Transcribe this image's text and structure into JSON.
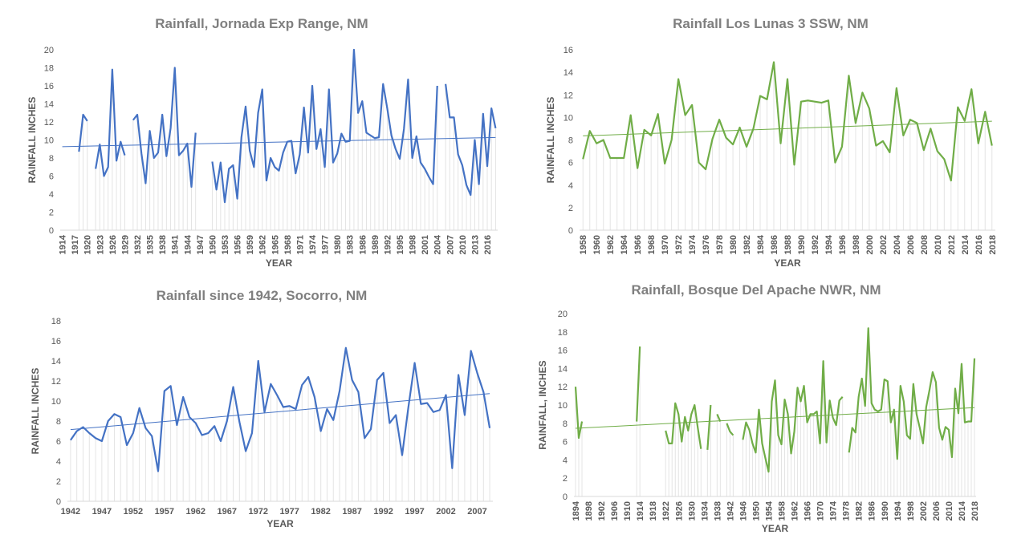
{
  "chart_data": [
    {
      "type": "line",
      "title": "Rainfall, Jornada Exp Range, NM",
      "y_label": "RAINFALL INCHES",
      "x_label": "YEAR",
      "color": "#4472c4",
      "trendline": true,
      "x": [
        1914,
        1915,
        1916,
        1917,
        1918,
        1919,
        1920,
        1921,
        1922,
        1923,
        1924,
        1925,
        1926,
        1927,
        1928,
        1929,
        1930,
        1931,
        1932,
        1933,
        1934,
        1935,
        1936,
        1937,
        1938,
        1939,
        1940,
        1941,
        1942,
        1943,
        1944,
        1945,
        1946,
        1947,
        1948,
        1949,
        1950,
        1951,
        1952,
        1953,
        1954,
        1955,
        1956,
        1957,
        1958,
        1959,
        1960,
        1961,
        1962,
        1963,
        1964,
        1965,
        1966,
        1967,
        1968,
        1969,
        1970,
        1971,
        1972,
        1973,
        1974,
        1975,
        1976,
        1977,
        1978,
        1979,
        1980,
        1981,
        1982,
        1983,
        1984,
        1985,
        1986,
        1987,
        1988,
        1989,
        1990,
        1991,
        1992,
        1993,
        1994,
        1995,
        1996,
        1997,
        1998,
        1999,
        2000,
        2001,
        2002,
        2003,
        2004,
        2005,
        2006,
        2007,
        2008,
        2009,
        2010,
        2011,
        2012,
        2013,
        2014,
        2015,
        2016,
        2017,
        2018
      ],
      "values": [
        null,
        null,
        null,
        null,
        8.7,
        12.8,
        12.1,
        null,
        6.8,
        9.5,
        6.0,
        7.0,
        17.8,
        7.7,
        9.8,
        8.3,
        null,
        12.2,
        12.8,
        8.5,
        5.2,
        11.0,
        8.0,
        8.6,
        12.8,
        8.2,
        11.3,
        18.0,
        8.3,
        8.8,
        9.6,
        4.8,
        10.8,
        null,
        null,
        null,
        7.6,
        4.5,
        7.5,
        3.1,
        6.8,
        7.2,
        3.5,
        10.3,
        13.7,
        8.8,
        7.0,
        13.0,
        15.6,
        5.5,
        8.0,
        7.0,
        6.6,
        8.6,
        9.8,
        9.9,
        6.3,
        8.4,
        13.6,
        8.6,
        16.0,
        9.0,
        11.2,
        7.0,
        15.6,
        7.5,
        8.5,
        10.7,
        9.8,
        9.9,
        20.0,
        13.0,
        14.3,
        10.8,
        10.5,
        10.2,
        10.3,
        16.2,
        13.5,
        10.5,
        9.0,
        7.9,
        11.2,
        16.7,
        8.0,
        10.4,
        7.5,
        6.8,
        5.9,
        5.1,
        16.0,
        null,
        16.2,
        12.5,
        12.5,
        8.4,
        7.2,
        5.0,
        3.9,
        10.0,
        5.1,
        12.9,
        7.1,
        13.5,
        11.3
      ],
      "xlim": [
        1913.5,
        2018.5
      ],
      "xticks": [
        1914,
        1917,
        1920,
        1923,
        1926,
        1929,
        1932,
        1935,
        1938,
        1941,
        1944,
        1947,
        1950,
        1953,
        1956,
        1959,
        1962,
        1965,
        1968,
        1971,
        1974,
        1977,
        1980,
        1983,
        1986,
        1989,
        1992,
        1995,
        1998,
        2001,
        2004,
        2007,
        2010,
        2013,
        2016
      ],
      "x_tick_rotate": true,
      "ylim": [
        0,
        20
      ],
      "yticks": [
        0,
        2,
        4,
        6,
        8,
        10,
        12,
        14,
        16,
        18,
        20
      ]
    },
    {
      "type": "line",
      "title": "Rainfall Los Lunas 3 SSW, NM",
      "y_label": "RAINFALL INCHES",
      "x_label": "YEAR",
      "color": "#70ad47",
      "trendline": true,
      "x": [
        1958,
        1959,
        1960,
        1961,
        1962,
        1963,
        1964,
        1965,
        1966,
        1967,
        1968,
        1969,
        1970,
        1971,
        1972,
        1973,
        1974,
        1975,
        1976,
        1977,
        1978,
        1979,
        1980,
        1981,
        1982,
        1983,
        1984,
        1985,
        1986,
        1987,
        1988,
        1989,
        1990,
        1991,
        1992,
        1993,
        1994,
        1995,
        1996,
        1997,
        1998,
        1999,
        2000,
        2001,
        2002,
        2003,
        2004,
        2005,
        2006,
        2007,
        2008,
        2009,
        2010,
        2011,
        2012,
        2013,
        2014,
        2015,
        2016,
        2017,
        2018
      ],
      "values": [
        6.3,
        8.8,
        7.7,
        8.0,
        6.4,
        6.4,
        6.4,
        10.2,
        5.5,
        8.9,
        8.4,
        10.3,
        5.9,
        8.0,
        13.4,
        10.2,
        11.1,
        6.0,
        5.4,
        8.1,
        9.8,
        8.2,
        7.6,
        9.1,
        7.4,
        9.0,
        11.9,
        11.6,
        14.9,
        7.7,
        13.4,
        5.8,
        11.4,
        11.5,
        11.4,
        11.3,
        11.5,
        6.0,
        7.4,
        13.7,
        9.5,
        12.2,
        10.8,
        7.5,
        7.9,
        6.9,
        12.6,
        8.4,
        9.8,
        9.5,
        7.1,
        9.0,
        7.0,
        6.3,
        4.4,
        10.9,
        9.7,
        12.5,
        7.7,
        10.5,
        7.5
      ],
      "xlim": [
        1957.5,
        2018.5
      ],
      "xticks": [
        1958,
        1960,
        1962,
        1964,
        1966,
        1968,
        1970,
        1972,
        1974,
        1976,
        1978,
        1980,
        1982,
        1984,
        1986,
        1988,
        1990,
        1992,
        1994,
        1996,
        1998,
        2000,
        2002,
        2004,
        2006,
        2008,
        2010,
        2012,
        2014,
        2016,
        2018
      ],
      "x_tick_rotate": true,
      "ylim": [
        0,
        16
      ],
      "yticks": [
        0,
        2,
        4,
        6,
        8,
        10,
        12,
        14,
        16
      ]
    },
    {
      "type": "line",
      "title": "Rainfall since 1942, Socorro, NM",
      "y_label": "RAINFALL INCHES",
      "x_label": "YEAR",
      "color": "#4472c4",
      "trendline": true,
      "x": [
        1942,
        1943,
        1944,
        1945,
        1946,
        1947,
        1948,
        1949,
        1950,
        1951,
        1952,
        1953,
        1954,
        1955,
        1956,
        1957,
        1958,
        1959,
        1960,
        1961,
        1962,
        1963,
        1964,
        1965,
        1966,
        1967,
        1968,
        1969,
        1970,
        1971,
        1972,
        1973,
        1974,
        1975,
        1976,
        1977,
        1978,
        1979,
        1980,
        1981,
        1982,
        1983,
        1984,
        1985,
        1986,
        1987,
        1988,
        1989,
        1990,
        1991,
        1992,
        1993,
        1994,
        1995,
        1996,
        1997,
        1998,
        1999,
        2000,
        2001,
        2002,
        2003,
        2004,
        2005,
        2006,
        2007,
        2008,
        2009
      ],
      "values": [
        6.1,
        7.0,
        7.4,
        6.8,
        6.3,
        6.0,
        8.0,
        8.7,
        8.4,
        5.6,
        6.8,
        9.3,
        7.3,
        6.5,
        3.0,
        11.0,
        11.5,
        7.6,
        10.4,
        8.4,
        7.8,
        6.6,
        6.8,
        7.5,
        6.0,
        8.0,
        11.4,
        7.9,
        5.0,
        6.8,
        14.0,
        8.9,
        11.7,
        10.6,
        9.4,
        9.5,
        9.2,
        11.6,
        12.4,
        10.4,
        7.0,
        9.2,
        8.1,
        11.0,
        15.3,
        12.1,
        10.9,
        6.3,
        7.2,
        12.1,
        12.8,
        7.8,
        8.6,
        4.6,
        9.4,
        13.8,
        9.7,
        9.8,
        8.9,
        9.1,
        10.6,
        3.3,
        12.6,
        8.6,
        15.0,
        12.8,
        10.9,
        7.3
      ],
      "xlim": [
        1941.5,
        2009.5
      ],
      "xticks": [
        1942,
        1947,
        1952,
        1957,
        1962,
        1967,
        1972,
        1977,
        1982,
        1987,
        1992,
        1997,
        2002,
        2007
      ],
      "x_tick_rotate": false,
      "ylim": [
        0,
        18
      ],
      "yticks": [
        0,
        2,
        4,
        6,
        8,
        10,
        12,
        14,
        16,
        18
      ]
    },
    {
      "type": "line",
      "title": "Rainfall, Bosque Del Apache NWR, NM",
      "y_label": "RAINFALL, INCHES",
      "x_label": "YEAR",
      "color": "#70ad47",
      "trendline": true,
      "x": [
        1894,
        1895,
        1896,
        1897,
        1898,
        1899,
        1900,
        1901,
        1902,
        1903,
        1904,
        1905,
        1906,
        1907,
        1908,
        1909,
        1910,
        1911,
        1912,
        1913,
        1914,
        1915,
        1916,
        1917,
        1918,
        1919,
        1920,
        1921,
        1922,
        1923,
        1924,
        1925,
        1926,
        1927,
        1928,
        1929,
        1930,
        1931,
        1932,
        1933,
        1934,
        1935,
        1936,
        1937,
        1938,
        1939,
        1940,
        1941,
        1942,
        1943,
        1944,
        1945,
        1946,
        1947,
        1948,
        1949,
        1950,
        1951,
        1952,
        1953,
        1954,
        1955,
        1956,
        1957,
        1958,
        1959,
        1960,
        1961,
        1962,
        1963,
        1964,
        1965,
        1966,
        1967,
        1968,
        1969,
        1970,
        1971,
        1972,
        1973,
        1974,
        1975,
        1976,
        1977,
        1978,
        1979,
        1980,
        1981,
        1982,
        1983,
        1984,
        1985,
        1986,
        1987,
        1988,
        1989,
        1990,
        1991,
        1992,
        1993,
        1994,
        1995,
        1996,
        1997,
        1998,
        1999,
        2000,
        2001,
        2002,
        2003,
        2004,
        2005,
        2006,
        2007,
        2008,
        2009,
        2010,
        2011,
        2012,
        2013,
        2014,
        2015,
        2016,
        2017,
        2018
      ],
      "values": [
        12.0,
        6.4,
        8.2,
        null,
        null,
        null,
        null,
        null,
        null,
        null,
        null,
        null,
        null,
        null,
        null,
        null,
        null,
        null,
        null,
        8.2,
        16.4,
        null,
        null,
        null,
        null,
        null,
        null,
        null,
        7.2,
        5.8,
        5.8,
        10.2,
        9.0,
        6.0,
        8.7,
        7.2,
        9.0,
        10.0,
        7.5,
        5.2,
        null,
        5.1,
        10.0,
        null,
        9.0,
        8.2,
        null,
        8.0,
        7.1,
        6.7,
        null,
        null,
        6.2,
        8.1,
        7.3,
        5.8,
        4.8,
        9.5,
        5.8,
        4.2,
        2.7,
        10.4,
        12.7,
        6.7,
        5.7,
        10.6,
        9.0,
        4.7,
        7.1,
        11.9,
        10.4,
        12.1,
        8.1,
        9.0,
        9.0,
        9.3,
        5.8,
        14.8,
        5.9,
        10.5,
        8.6,
        7.8,
        10.5,
        10.9,
        null,
        4.8,
        7.5,
        7.0,
        10.9,
        12.9,
        9.9,
        18.4,
        10.2,
        9.5,
        9.3,
        9.5,
        12.8,
        12.6,
        8.1,
        9.5,
        4.1,
        12.1,
        10.4,
        6.7,
        6.3,
        12.3,
        9.0,
        7.5,
        5.8,
        9.8,
        11.6,
        13.6,
        12.5,
        7.5,
        6.2,
        7.6,
        7.3,
        4.3,
        11.8,
        9.1,
        14.5,
        8.1,
        8.2,
        8.2,
        15.1
      ],
      "xlim": [
        1893.5,
        2018.5
      ],
      "xticks": [
        1894,
        1898,
        1902,
        1906,
        1910,
        1914,
        1918,
        1922,
        1926,
        1930,
        1934,
        1938,
        1942,
        1946,
        1950,
        1954,
        1958,
        1962,
        1966,
        1970,
        1974,
        1978,
        1982,
        1986,
        1990,
        1994,
        1998,
        2002,
        2006,
        2010,
        2014,
        2018
      ],
      "x_tick_rotate": true,
      "ylim": [
        0,
        20
      ],
      "yticks": [
        0,
        2,
        4,
        6,
        8,
        10,
        12,
        14,
        16,
        18,
        20
      ]
    }
  ]
}
